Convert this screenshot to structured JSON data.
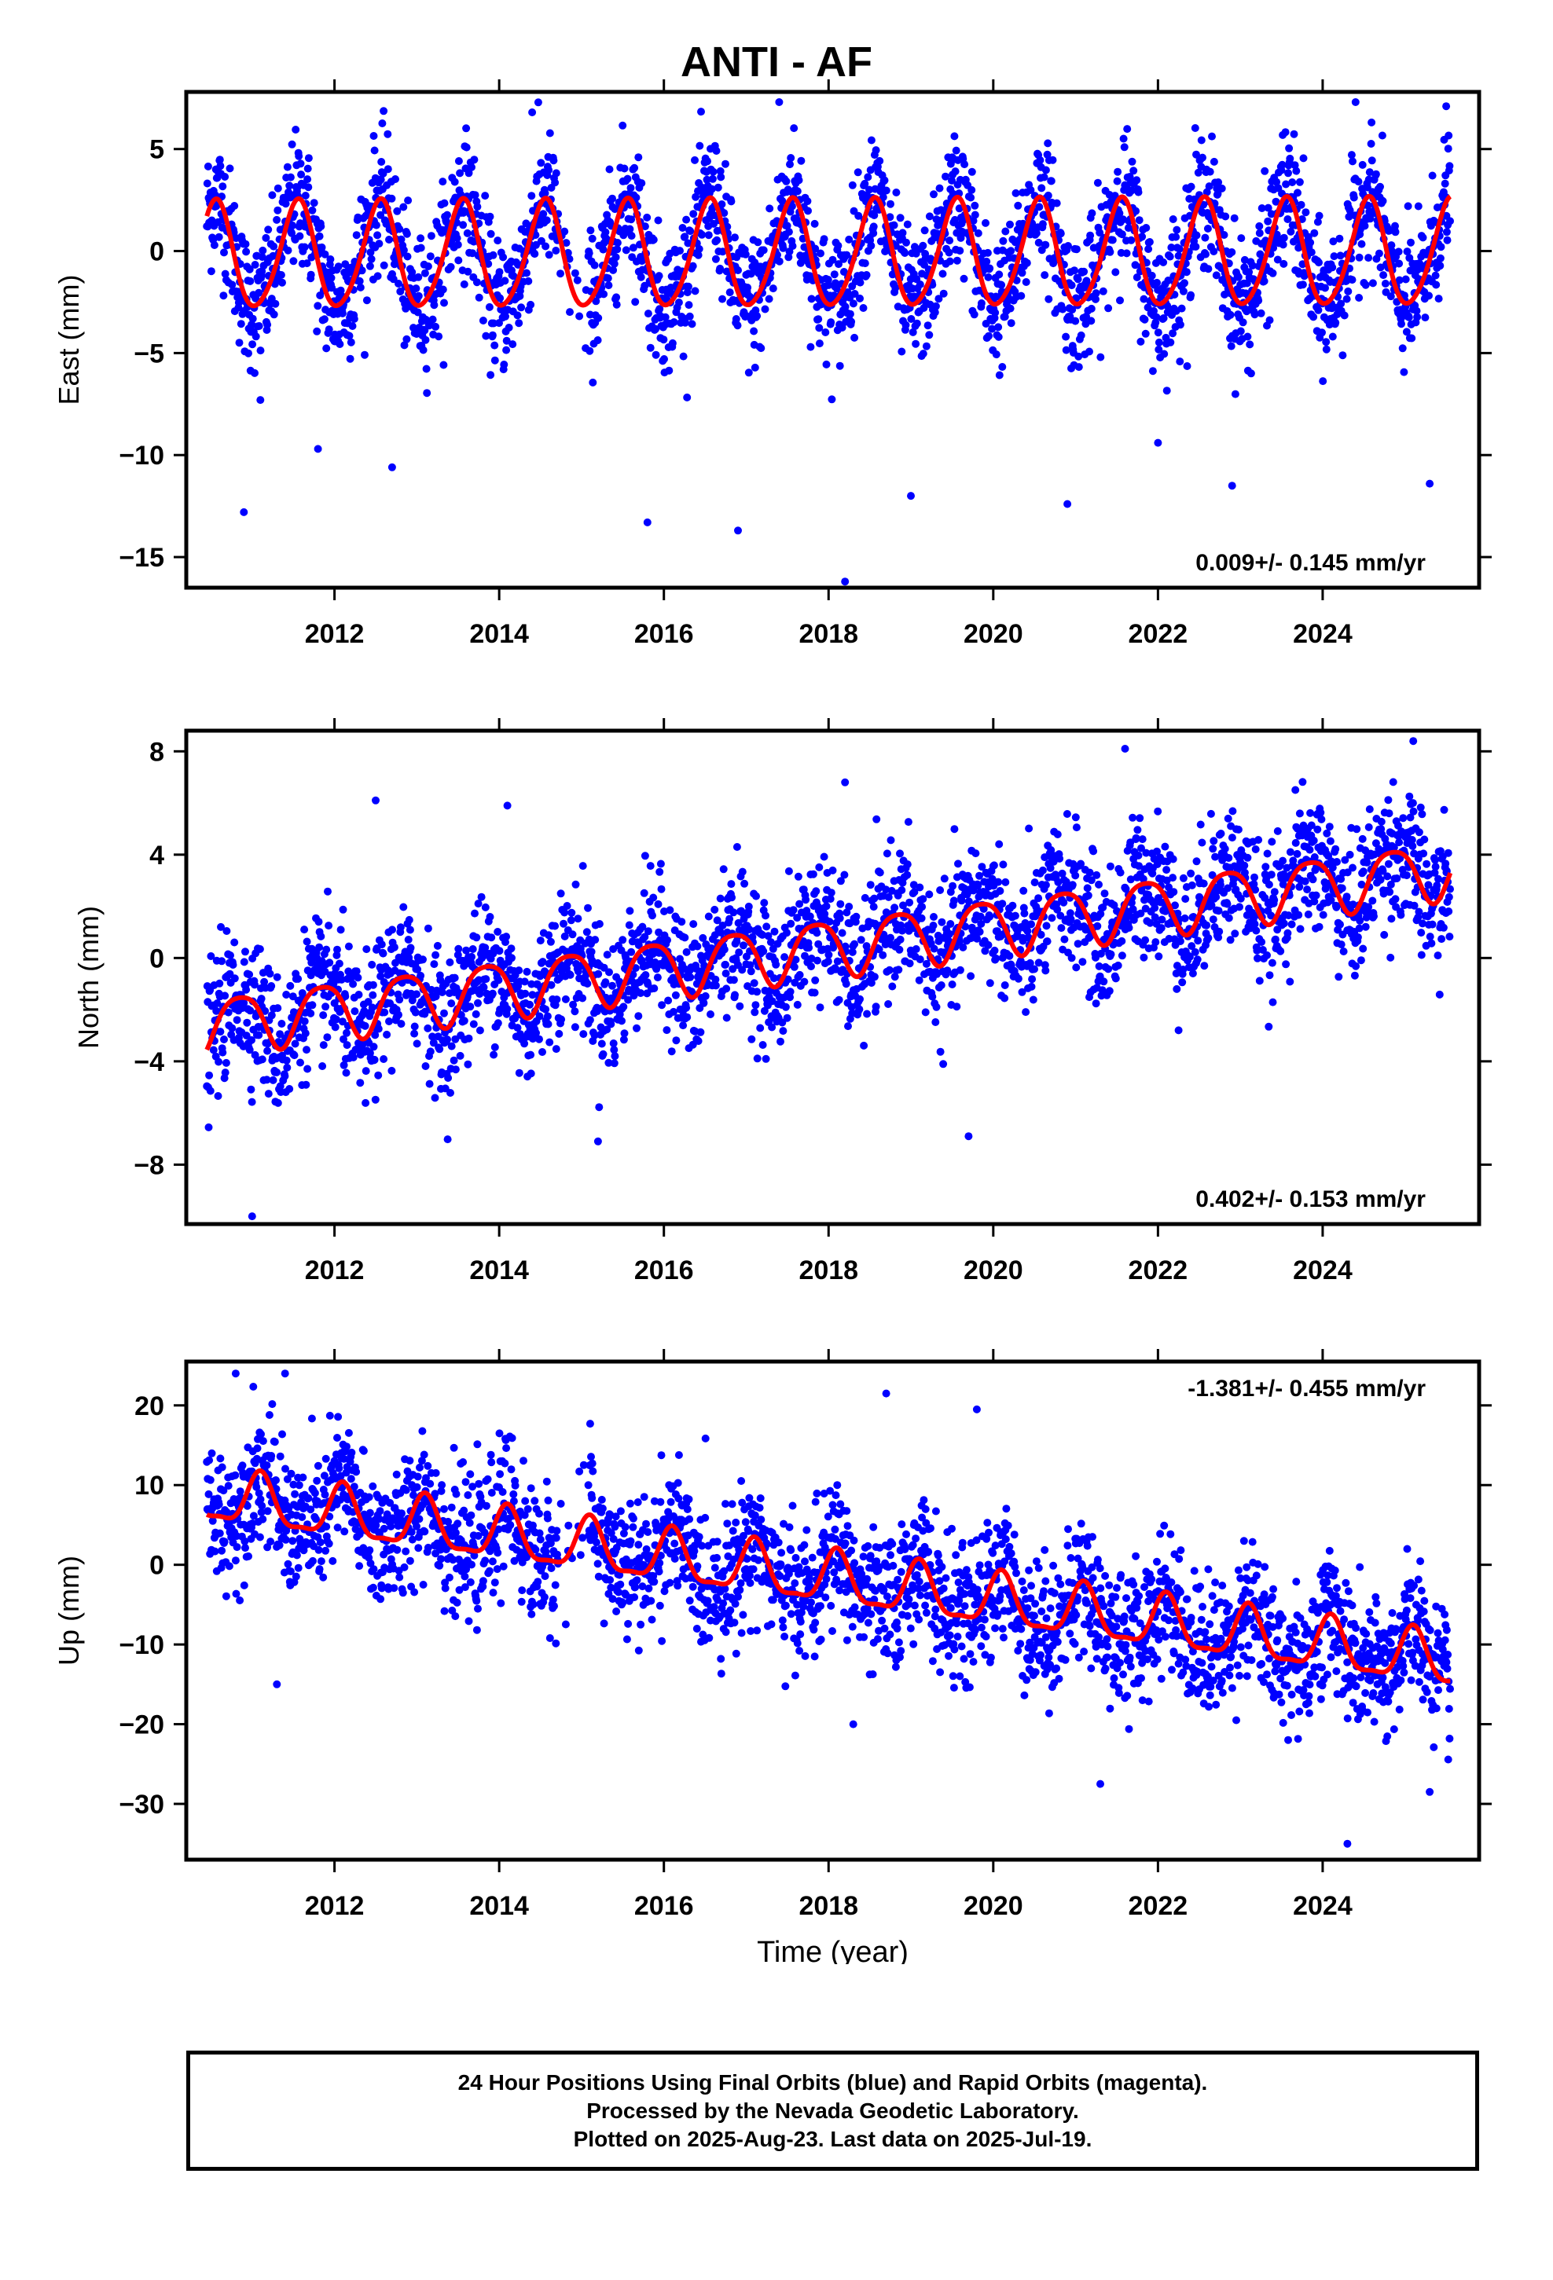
{
  "title": "ANTI - AF",
  "footer": {
    "line1": "24 Hour Positions Using Final Orbits (blue) and Rapid Orbits (magenta).",
    "line2": "Processed by the Nevada Geodetic Laboratory.",
    "line3": "Plotted on 2025-Aug-23. Last data on 2025-Jul-19."
  },
  "colors": {
    "points": "#0000ff",
    "model": "#ff0000",
    "axes": "#000000"
  },
  "chart_data": [
    {
      "type": "scatter",
      "title": "ANTI - AF",
      "ylabel": "East (mm)",
      "xlabel": "",
      "xlim": [
        2010.2,
        2025.9
      ],
      "ylim": [
        -16.5,
        7.8
      ],
      "xticks": [
        2012,
        2014,
        2016,
        2018,
        2020,
        2022,
        2024
      ],
      "yticks": [
        5,
        0,
        -5,
        -10,
        -15
      ],
      "rate_label": "0.009+/- 0.145 mm/yr",
      "rate_position": "bottom-right",
      "data_span": [
        2010.45,
        2025.55
      ],
      "model": {
        "offset": -0.3,
        "rate": 0.009,
        "annual_amp": 2.6,
        "annual_phase": 0.0,
        "semi_amp": 0.3
      },
      "scatter_sd": 1.6,
      "series": [
        {
          "name": "Final Orbits (blue)",
          "role": "daily positions"
        },
        {
          "name": "",
          "role": "model fit"
        }
      ],
      "outliers": [
        {
          "x": 2010.9,
          "y": -12.8
        },
        {
          "x": 2011.1,
          "y": -7.3
        },
        {
          "x": 2011.8,
          "y": -9.7
        },
        {
          "x": 2012.7,
          "y": -10.6
        },
        {
          "x": 2014.4,
          "y": 6.8
        },
        {
          "x": 2015.8,
          "y": -13.3
        },
        {
          "x": 2016.9,
          "y": -13.7
        },
        {
          "x": 2017.4,
          "y": 7.3
        },
        {
          "x": 2018.2,
          "y": -16.2
        },
        {
          "x": 2019.0,
          "y": -12.0
        },
        {
          "x": 2020.9,
          "y": -12.4
        },
        {
          "x": 2022.0,
          "y": -9.4
        },
        {
          "x": 2022.9,
          "y": -11.5
        },
        {
          "x": 2024.4,
          "y": 7.3
        },
        {
          "x": 2025.3,
          "y": -11.4
        },
        {
          "x": 2025.5,
          "y": 7.1
        }
      ]
    },
    {
      "type": "scatter",
      "ylabel": "North (mm)",
      "xlabel": "",
      "xlim": [
        2010.2,
        2025.9
      ],
      "ylim": [
        -10.3,
        8.8
      ],
      "xticks": [
        2012,
        2014,
        2016,
        2018,
        2020,
        2022,
        2024
      ],
      "yticks": [
        8,
        4,
        0,
        -4,
        -8
      ],
      "rate_label": "0.402+/- 0.153 mm/yr",
      "rate_position": "bottom-right",
      "data_span": [
        2010.45,
        2025.55
      ],
      "model": {
        "offset": -2.6,
        "rate": 0.402,
        "annual_amp": 1.1,
        "annual_phase": 0.3,
        "semi_amp": 0.2
      },
      "scatter_sd": 1.3,
      "series": [
        {
          "name": "Final Orbits (blue)",
          "role": "daily positions"
        },
        {
          "name": "",
          "role": "model fit"
        }
      ],
      "outliers": [
        {
          "x": 2011.0,
          "y": -10.0
        },
        {
          "x": 2012.5,
          "y": 6.1
        },
        {
          "x": 2014.1,
          "y": 5.9
        },
        {
          "x": 2015.2,
          "y": -7.1
        },
        {
          "x": 2018.2,
          "y": 6.8
        },
        {
          "x": 2019.7,
          "y": -6.9
        },
        {
          "x": 2021.6,
          "y": 8.1
        },
        {
          "x": 2025.1,
          "y": 8.4
        }
      ]
    },
    {
      "type": "scatter",
      "ylabel": "Up (mm)",
      "xlabel": "Time (year)",
      "xlim": [
        2010.2,
        2025.9
      ],
      "ylim": [
        -37.0,
        25.5
      ],
      "xticks": [
        2012,
        2014,
        2016,
        2018,
        2020,
        2022,
        2024
      ],
      "yticks": [
        20,
        10,
        0,
        -10,
        -20,
        -30
      ],
      "rate_label": "-1.381+/- 0.455 mm/yr",
      "rate_position": "top-right",
      "data_span": [
        2010.45,
        2025.55
      ],
      "model": {
        "offset": 8.5,
        "rate": -1.381,
        "annual_amp": 3.2,
        "annual_phase": 0.55,
        "semi_amp": 1.0
      },
      "scatter_sd": 4.2,
      "series": [
        {
          "name": "Final Orbits (blue)",
          "role": "daily positions"
        },
        {
          "name": "",
          "role": "model fit"
        }
      ],
      "outliers": [
        {
          "x": 2010.8,
          "y": 24.0
        },
        {
          "x": 2011.3,
          "y": -15.0
        },
        {
          "x": 2011.4,
          "y": 24.0
        },
        {
          "x": 2018.3,
          "y": -20.0
        },
        {
          "x": 2018.7,
          "y": 21.5
        },
        {
          "x": 2019.8,
          "y": 19.5
        },
        {
          "x": 2021.3,
          "y": -27.5
        },
        {
          "x": 2024.3,
          "y": -35.0
        },
        {
          "x": 2025.3,
          "y": -28.5
        }
      ]
    }
  ]
}
